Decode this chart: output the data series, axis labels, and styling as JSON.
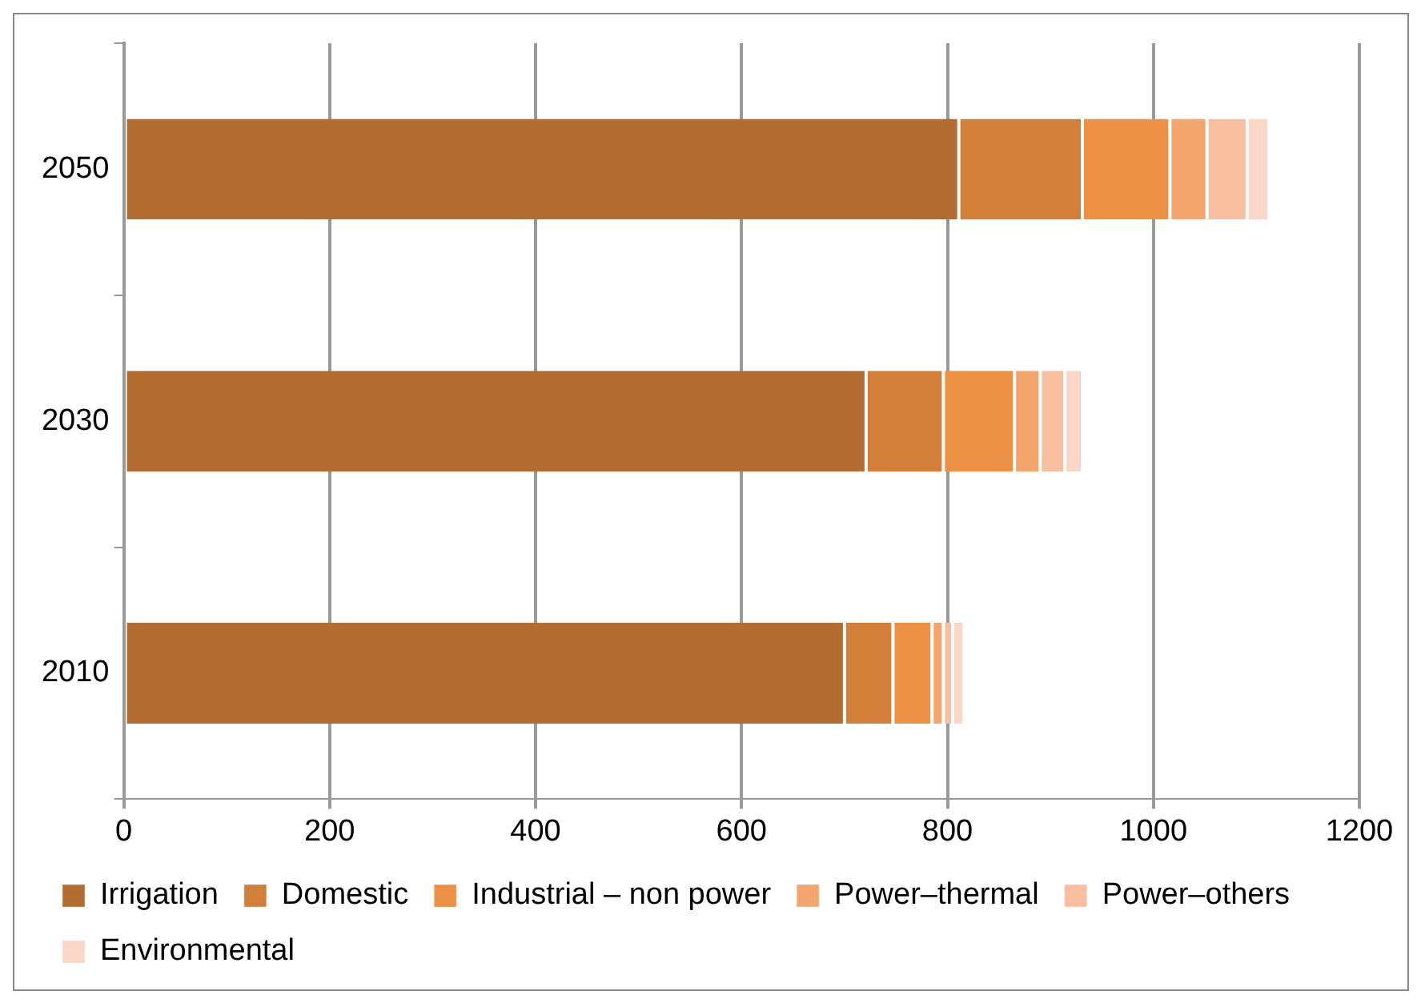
{
  "chart_data": {
    "type": "bar",
    "orientation": "horizontal",
    "stacked": true,
    "categories": [
      "2050",
      "2030",
      "2010"
    ],
    "series": [
      {
        "name": "Irrigation",
        "color": "#b36d32",
        "values": [
          811,
          721,
          700
        ]
      },
      {
        "name": "Domestic",
        "color": "#d27f3a",
        "values": [
          120,
          75,
          47
        ]
      },
      {
        "name": "Industrial – non power",
        "color": "#ec9145",
        "values": [
          85,
          69,
          38
        ]
      },
      {
        "name": "Power–thermal",
        "color": "#f5a66f",
        "values": [
          36,
          25,
          11
        ]
      },
      {
        "name": "Power–others",
        "color": "#f8bea0",
        "values": [
          39,
          24,
          9
        ]
      },
      {
        "name": "Environmental",
        "color": "#fad6c6",
        "values": [
          21,
          17,
          11
        ]
      }
    ],
    "xlim": [
      0,
      1200
    ],
    "xticks": [
      0,
      200,
      400,
      600,
      800,
      1000,
      1200
    ],
    "grid": "x",
    "legend": "bottom"
  }
}
